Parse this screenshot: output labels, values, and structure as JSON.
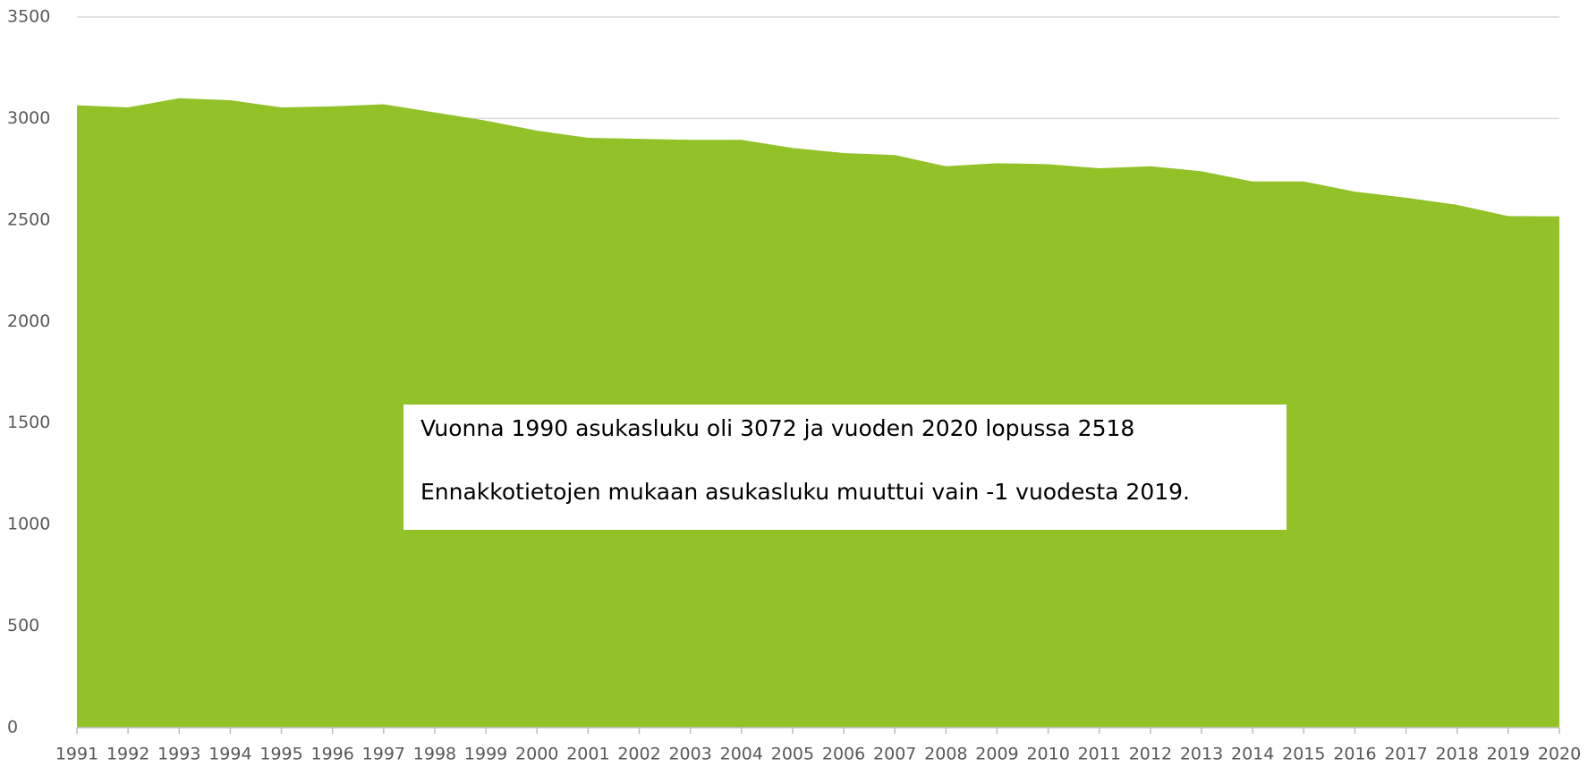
{
  "chart_data": {
    "type": "area",
    "categories": [
      "1991",
      "1992",
      "1993",
      "1994",
      "1995",
      "1996",
      "1997",
      "1998",
      "1999",
      "2000",
      "2001",
      "2002",
      "2003",
      "2004",
      "2005",
      "2006",
      "2007",
      "2008",
      "2009",
      "2010",
      "2011",
      "2012",
      "2013",
      "2014",
      "2015",
      "2016",
      "2017",
      "2018",
      "2019",
      "2020"
    ],
    "values": [
      3065,
      3055,
      3100,
      3090,
      3055,
      3060,
      3070,
      3030,
      2990,
      2940,
      2905,
      2900,
      2895,
      2895,
      2855,
      2830,
      2820,
      2765,
      2780,
      2775,
      2755,
      2765,
      2740,
      2690,
      2690,
      2640,
      2610,
      2575,
      2519,
      2518
    ],
    "color": "#92c227",
    "ylim": [
      0,
      3500
    ],
    "yticks": [
      0,
      500,
      1000,
      1500,
      2000,
      2500,
      3000,
      3500
    ],
    "grid": true,
    "annotations": [
      "Vuonna 1990 asukasluku oli 3072 ja vuoden 2020 lopussa 2518",
      "Ennakkotietojen mukaan asukasluku muuttui vain -1 vuodesta 2019."
    ]
  }
}
